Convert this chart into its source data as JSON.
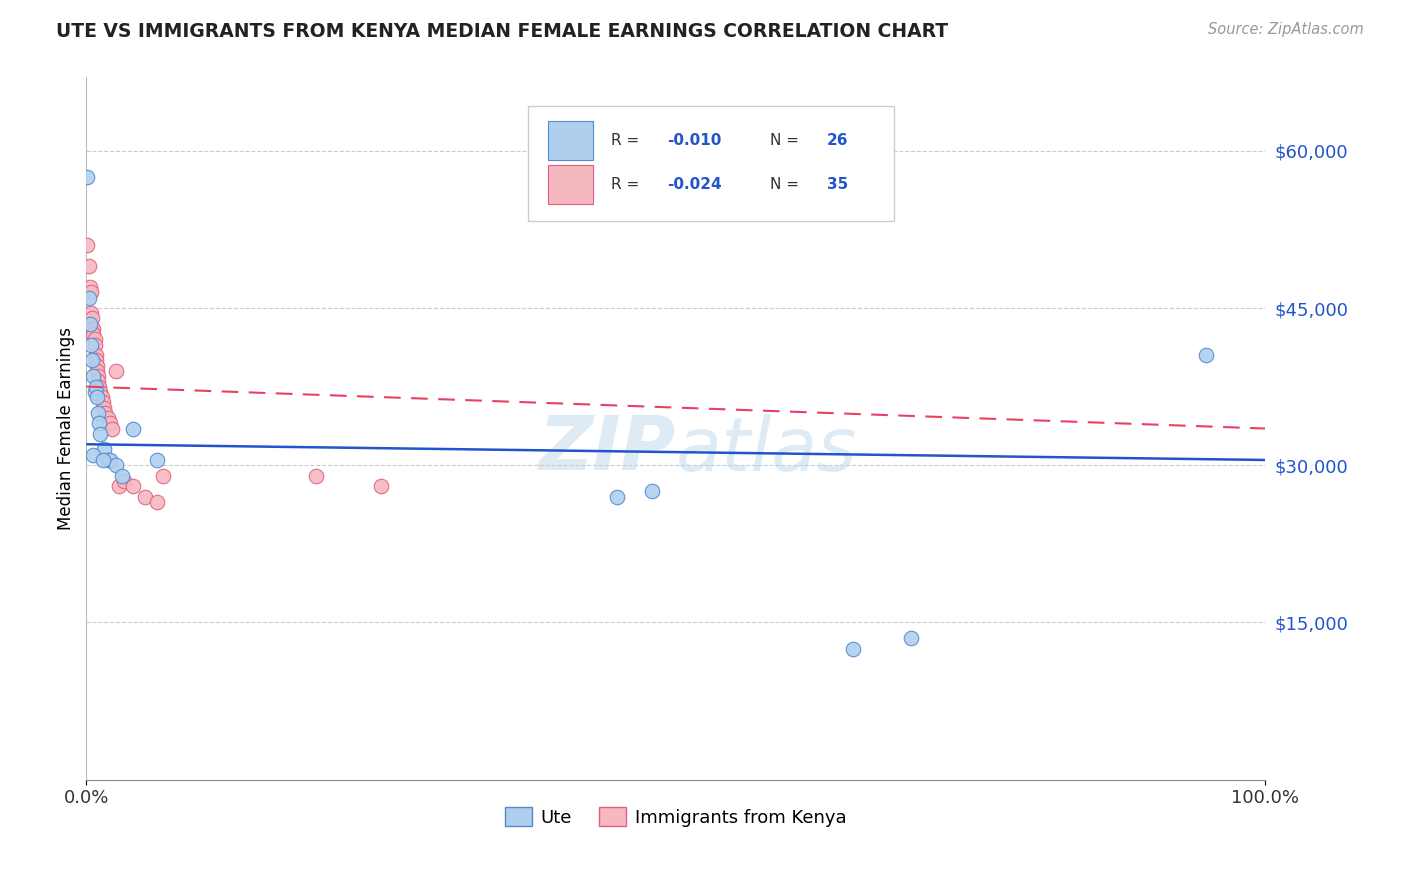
{
  "title": "UTE VS IMMIGRANTS FROM KENYA MEDIAN FEMALE EARNINGS CORRELATION CHART",
  "source": "Source: ZipAtlas.com",
  "ylabel": "Median Female Earnings",
  "xlim": [
    0.0,
    1.0
  ],
  "ylim": [
    0,
    67000
  ],
  "yticks": [
    15000,
    30000,
    45000,
    60000
  ],
  "ytick_labels": [
    "$15,000",
    "$30,000",
    "$45,000",
    "$60,000"
  ],
  "xtick_labels": [
    "0.0%",
    "100.0%"
  ],
  "ute_color": "#aed0ee",
  "kenya_color": "#f5b8c0",
  "ute_edge_color": "#5588cc",
  "kenya_edge_color": "#e06080",
  "ute_line_color": "#2255cc",
  "kenya_line_color": "#e84060",
  "watermark": "ZIPatlas",
  "ute_x": [
    0.001,
    0.002,
    0.003,
    0.004,
    0.005,
    0.006,
    0.007,
    0.008,
    0.009,
    0.01,
    0.011,
    0.012,
    0.015,
    0.018,
    0.02,
    0.025,
    0.03,
    0.04,
    0.06,
    0.45,
    0.48,
    0.65,
    0.7,
    0.95,
    0.006,
    0.014
  ],
  "ute_y": [
    57500,
    46000,
    43500,
    41500,
    40000,
    38500,
    37000,
    37500,
    36500,
    35000,
    34000,
    33000,
    31500,
    30500,
    30500,
    30000,
    29000,
    33500,
    30500,
    27000,
    27500,
    12500,
    13500,
    40500,
    31000,
    30500
  ],
  "kenya_x": [
    0.001,
    0.002,
    0.003,
    0.004,
    0.004,
    0.005,
    0.005,
    0.006,
    0.006,
    0.007,
    0.007,
    0.008,
    0.008,
    0.009,
    0.009,
    0.01,
    0.01,
    0.011,
    0.012,
    0.013,
    0.014,
    0.015,
    0.016,
    0.018,
    0.02,
    0.022,
    0.025,
    0.028,
    0.032,
    0.04,
    0.05,
    0.06,
    0.065,
    0.195,
    0.25
  ],
  "kenya_y": [
    51000,
    49000,
    47000,
    46500,
    44500,
    44000,
    43000,
    43000,
    42500,
    42000,
    41500,
    40500,
    40000,
    39500,
    39000,
    38500,
    38000,
    37500,
    37000,
    36500,
    36000,
    35500,
    35000,
    34500,
    34000,
    33500,
    39000,
    28000,
    28500,
    28000,
    27000,
    26500,
    29000,
    29000,
    28000
  ],
  "ute_trend": [
    32000,
    30500
  ],
  "kenya_trend": [
    37500,
    33500
  ]
}
